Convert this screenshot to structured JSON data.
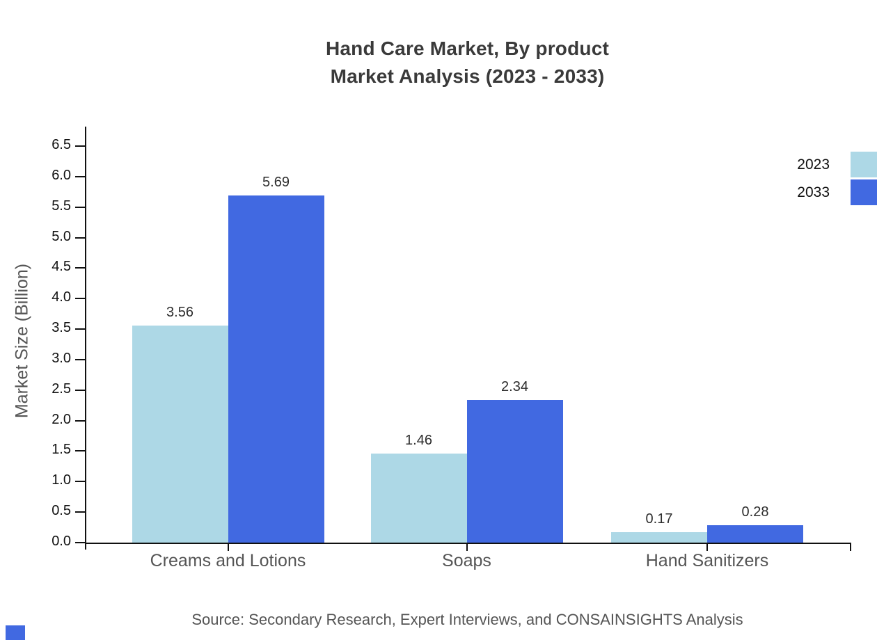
{
  "chart_data": {
    "type": "bar",
    "title_lines": [
      "Hand Care Market, By product",
      "Market Analysis (2023 - 2033)"
    ],
    "categories": [
      "Creams and Lotions",
      "Soaps",
      "Hand Sanitizers"
    ],
    "series": [
      {
        "name": "2023",
        "color": "#ADD8E6",
        "values": [
          3.56,
          1.46,
          0.17
        ]
      },
      {
        "name": "2033",
        "color": "#4169E1",
        "values": [
          5.69,
          2.34,
          0.28
        ]
      }
    ],
    "xlabel": "",
    "ylabel": "Market Size (Billion)",
    "ylim": [
      0,
      6.5
    ],
    "ytick_labels": [
      "0.0",
      "0.5",
      "1.0",
      "1.5",
      "2.0",
      "2.5",
      "3.0",
      "3.5",
      "4.0",
      "4.5",
      "5.0",
      "5.5",
      "6.0",
      "6.5"
    ],
    "value_labels": [
      "3.56",
      "5.69",
      "1.46",
      "2.34",
      "0.17",
      "0.28"
    ],
    "grid": false,
    "legend": {
      "position": "top-right",
      "entries": [
        "2023",
        "2033"
      ]
    },
    "source": "Source: Secondary Research, Expert Interviews, and CONSAINSIGHTS Analysis"
  },
  "colors": {
    "series_2023": "#ADD8E6",
    "series_2033": "#4169E1",
    "axis": "#111111",
    "title_text": "#3A3A3A",
    "category_text": "#555555",
    "value_text": "#2D2D2D",
    "source_text": "#555555"
  }
}
